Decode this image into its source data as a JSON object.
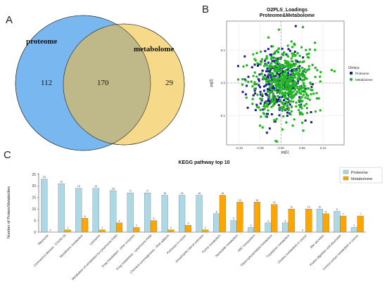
{
  "panel_letters": {
    "a": "A",
    "b": "B",
    "c": "C"
  },
  "colors": {
    "proteome_fill": "#78b7f0",
    "metabolome_fill": "#f7d98a",
    "overlap_fill": "#bfb98a",
    "proteome_dot": "#1c1c8c",
    "metabolome_dot": "#22b522",
    "proteome_bar": "#add8e6",
    "metabolome_bar": "#ffa500"
  },
  "chart_data": [
    {
      "type": "venn",
      "sets": [
        {
          "name": "proteome",
          "only": 112
        },
        {
          "name": "metabolome",
          "only": 29
        }
      ],
      "intersection": 170
    },
    {
      "type": "scatter",
      "title": "O2PLS_Loadings",
      "subtitle": "Proteome&Metabolome",
      "xlabel": "pq[1]",
      "ylabel": "pq[2]",
      "xlim": [
        -0.13,
        0.15
      ],
      "ylim": [
        -0.19,
        0.19
      ],
      "x_ticks": [
        -0.1,
        -0.05,
        0,
        0.05,
        0.1
      ],
      "y_ticks": [
        0.1,
        0,
        -0.1
      ],
      "x_tick_labels": [
        "-0.10",
        "-0.05",
        "0.00",
        "0.05",
        "0.10"
      ],
      "y_tick_labels": [
        "0.1",
        "0.0",
        "-0.1"
      ],
      "grid": true,
      "legend_title": "Omics",
      "legend_position": "right",
      "series": [
        {
          "name": "Proteome"
        },
        {
          "name": "Metabolome"
        }
      ]
    },
    {
      "type": "bar",
      "title": "KEGG pathway top 10",
      "ylabel": "Number of Protein/Metabolites",
      "ylim": [
        0,
        25
      ],
      "y_ticks": [
        0,
        5,
        10,
        15,
        20,
        25
      ],
      "legend_position": "top-right",
      "categories": [
        "Ribosome",
        "Coronavirus disease - COVID-19",
        "Glutathione metabolism",
        "Lysosome",
        "Metabolism of xenobiotics by cytochrome P450",
        "Drug metabolism - other enzymes",
        "Drug metabolism - cytochrome P450",
        "Chemical carcinogenesis - DNA adducts",
        "Pathways in cancer",
        "Amyotrophic lateral sclerosis",
        "Purine metabolism",
        "Nucleotide metabolism",
        "ABC transporters",
        "Glycerophospholipid metabolism",
        "Tryptophan metabolism",
        "Choline metabolism in cancer",
        "Bile secretion",
        "Protein digestion and absorption",
        "Central carbon metabolism in cancer"
      ],
      "series": [
        {
          "name": "Proteome",
          "values": [
            23,
            21,
            19,
            19,
            18,
            17,
            17,
            16,
            16,
            16,
            8,
            5,
            2,
            4,
            4,
            0,
            10,
            9,
            2
          ]
        },
        {
          "name": "Metabolome",
          "values": [
            0,
            1,
            6,
            1,
            4,
            2,
            5,
            1,
            3,
            1,
            16,
            13,
            13,
            12,
            10,
            10,
            8,
            7,
            7
          ]
        }
      ]
    }
  ]
}
